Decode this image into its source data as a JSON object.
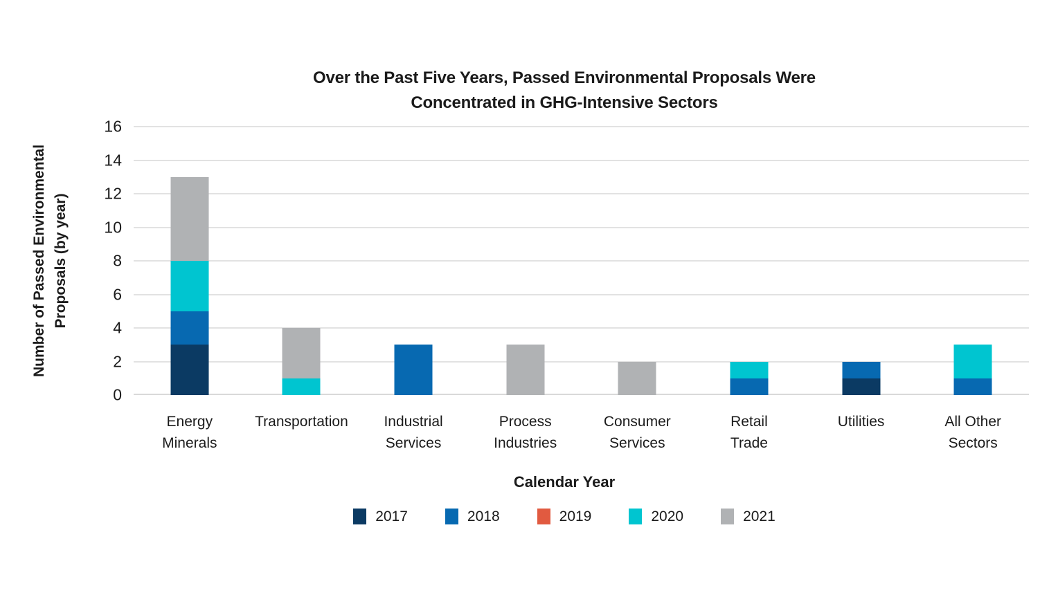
{
  "page": {
    "background": "#ffffff"
  },
  "chart_data": {
    "type": "bar",
    "stacked": true,
    "title": "Over the Past Five Years, Passed Environmental Proposals Were Concentrated in GHG-Intensive Sectors",
    "title_lines": [
      "Over the Past Five Years, Passed Environmental Proposals Were",
      "Concentrated in GHG-Intensive Sectors"
    ],
    "xlabel": "Calendar Year",
    "ylabel": "Number of Passed Environmental Proposals (by year)",
    "ylabel_lines": [
      "Number of Passed Environmental",
      "Proposals (by year)"
    ],
    "categories": [
      "Energy Minerals",
      "Transportation",
      "Industrial Services",
      "Process Industries",
      "Consumer Services",
      "Retail Trade",
      "Utilities",
      "All Other Sectors"
    ],
    "category_label_lines": [
      [
        "Energy",
        "Minerals"
      ],
      [
        "Transportation"
      ],
      [
        "Industrial",
        "Services"
      ],
      [
        "Process",
        "Industries"
      ],
      [
        "Consumer",
        "Services"
      ],
      [
        "Retail",
        "Trade"
      ],
      [
        "Utilities"
      ],
      [
        "All Other",
        "Sectors"
      ]
    ],
    "series": [
      {
        "name": "2017",
        "color": "#0b3a63",
        "values": [
          3,
          0,
          0,
          0,
          0,
          0,
          1,
          0
        ]
      },
      {
        "name": "2018",
        "color": "#0769b1",
        "values": [
          2,
          0,
          3,
          0,
          0,
          1,
          1,
          1
        ]
      },
      {
        "name": "2019",
        "color": "#e15a40",
        "values": [
          0,
          0,
          0,
          0,
          0,
          0,
          0,
          0
        ]
      },
      {
        "name": "2020",
        "color": "#00c5d0",
        "values": [
          3,
          1,
          0,
          0,
          0,
          1,
          0,
          2
        ]
      },
      {
        "name": "2021",
        "color": "#b0b2b4",
        "values": [
          5,
          3,
          0,
          3,
          2,
          0,
          0,
          0
        ]
      }
    ],
    "totals": [
      13,
      4,
      3,
      3,
      2,
      2,
      2,
      3
    ],
    "ylim": [
      0,
      16
    ],
    "ytick_step": 2,
    "ytick_labels": [
      "0",
      "2",
      "4",
      "6",
      "8",
      "10",
      "12",
      "14",
      "16"
    ],
    "grid": true,
    "legend_position": "bottom",
    "colors": {
      "axis_text": "#1b1b1b",
      "gridline": "#e2e2e2",
      "baseline": "#d9d9d9"
    }
  }
}
